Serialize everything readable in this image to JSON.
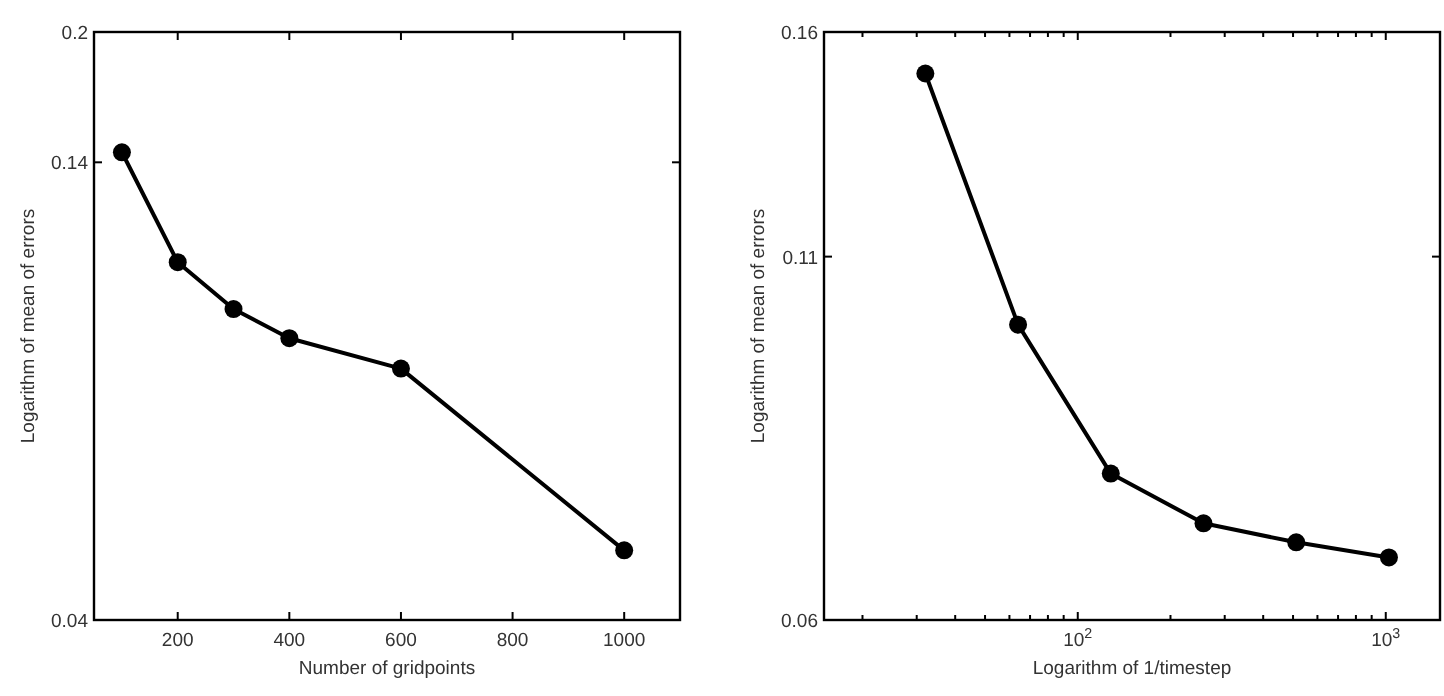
{
  "chart_data": [
    {
      "type": "line",
      "xlabel": "Number of gridpoints",
      "ylabel": "Logarithm of mean of errors",
      "x": [
        100,
        200,
        300,
        400,
        600,
        1000
      ],
      "series": [
        {
          "color": "#000000",
          "values": [
            0.1439,
            0.1065,
            0.0937,
            0.0865,
            0.0796,
            0.0484
          ]
        }
      ],
      "xlim": [
        50,
        1100
      ],
      "xticks": [
        200,
        400,
        600,
        800,
        1000
      ],
      "ylim": [
        0.04,
        0.2
      ],
      "yticks": [
        0.04,
        0.14,
        0.2
      ],
      "log": "y",
      "marker": "circle",
      "line_style": "solid",
      "grid": false
    },
    {
      "type": "line",
      "xlabel": "Logarithm of 1/timestep",
      "ylabel": "Logarithm of mean of errors",
      "x": [
        32,
        64,
        128,
        256,
        512,
        1024
      ],
      "series": [
        {
          "color": "#000000",
          "values": [
            0.1493,
            0.0982,
            0.0766,
            0.0705,
            0.0683,
            0.0666
          ]
        }
      ],
      "xlim": [
        15,
        1500
      ],
      "xticks": [
        {
          "value": 20,
          "label": null
        },
        {
          "value": 30,
          "label": null
        },
        {
          "value": 40,
          "label": null
        },
        {
          "value": 50,
          "label": null
        },
        {
          "value": 60,
          "label": null
        },
        {
          "value": 70,
          "label": null
        },
        {
          "value": 80,
          "label": null
        },
        {
          "value": 90,
          "label": null
        },
        {
          "value": 100,
          "label": "10$^{2}$"
        },
        {
          "value": 200,
          "label": null
        },
        {
          "value": 300,
          "label": null
        },
        {
          "value": 400,
          "label": null
        },
        {
          "value": 500,
          "label": null
        },
        {
          "value": 600,
          "label": null
        },
        {
          "value": 700,
          "label": null
        },
        {
          "value": 800,
          "label": null
        },
        {
          "value": 900,
          "label": null
        },
        {
          "value": 1000,
          "label": "10$^{3}$"
        }
      ],
      "ylim": [
        0.06,
        0.16
      ],
      "yticks": [
        0.06,
        0.11,
        0.16
      ],
      "log": "xy",
      "marker": "circle",
      "line_style": "solid",
      "grid": false
    }
  ]
}
